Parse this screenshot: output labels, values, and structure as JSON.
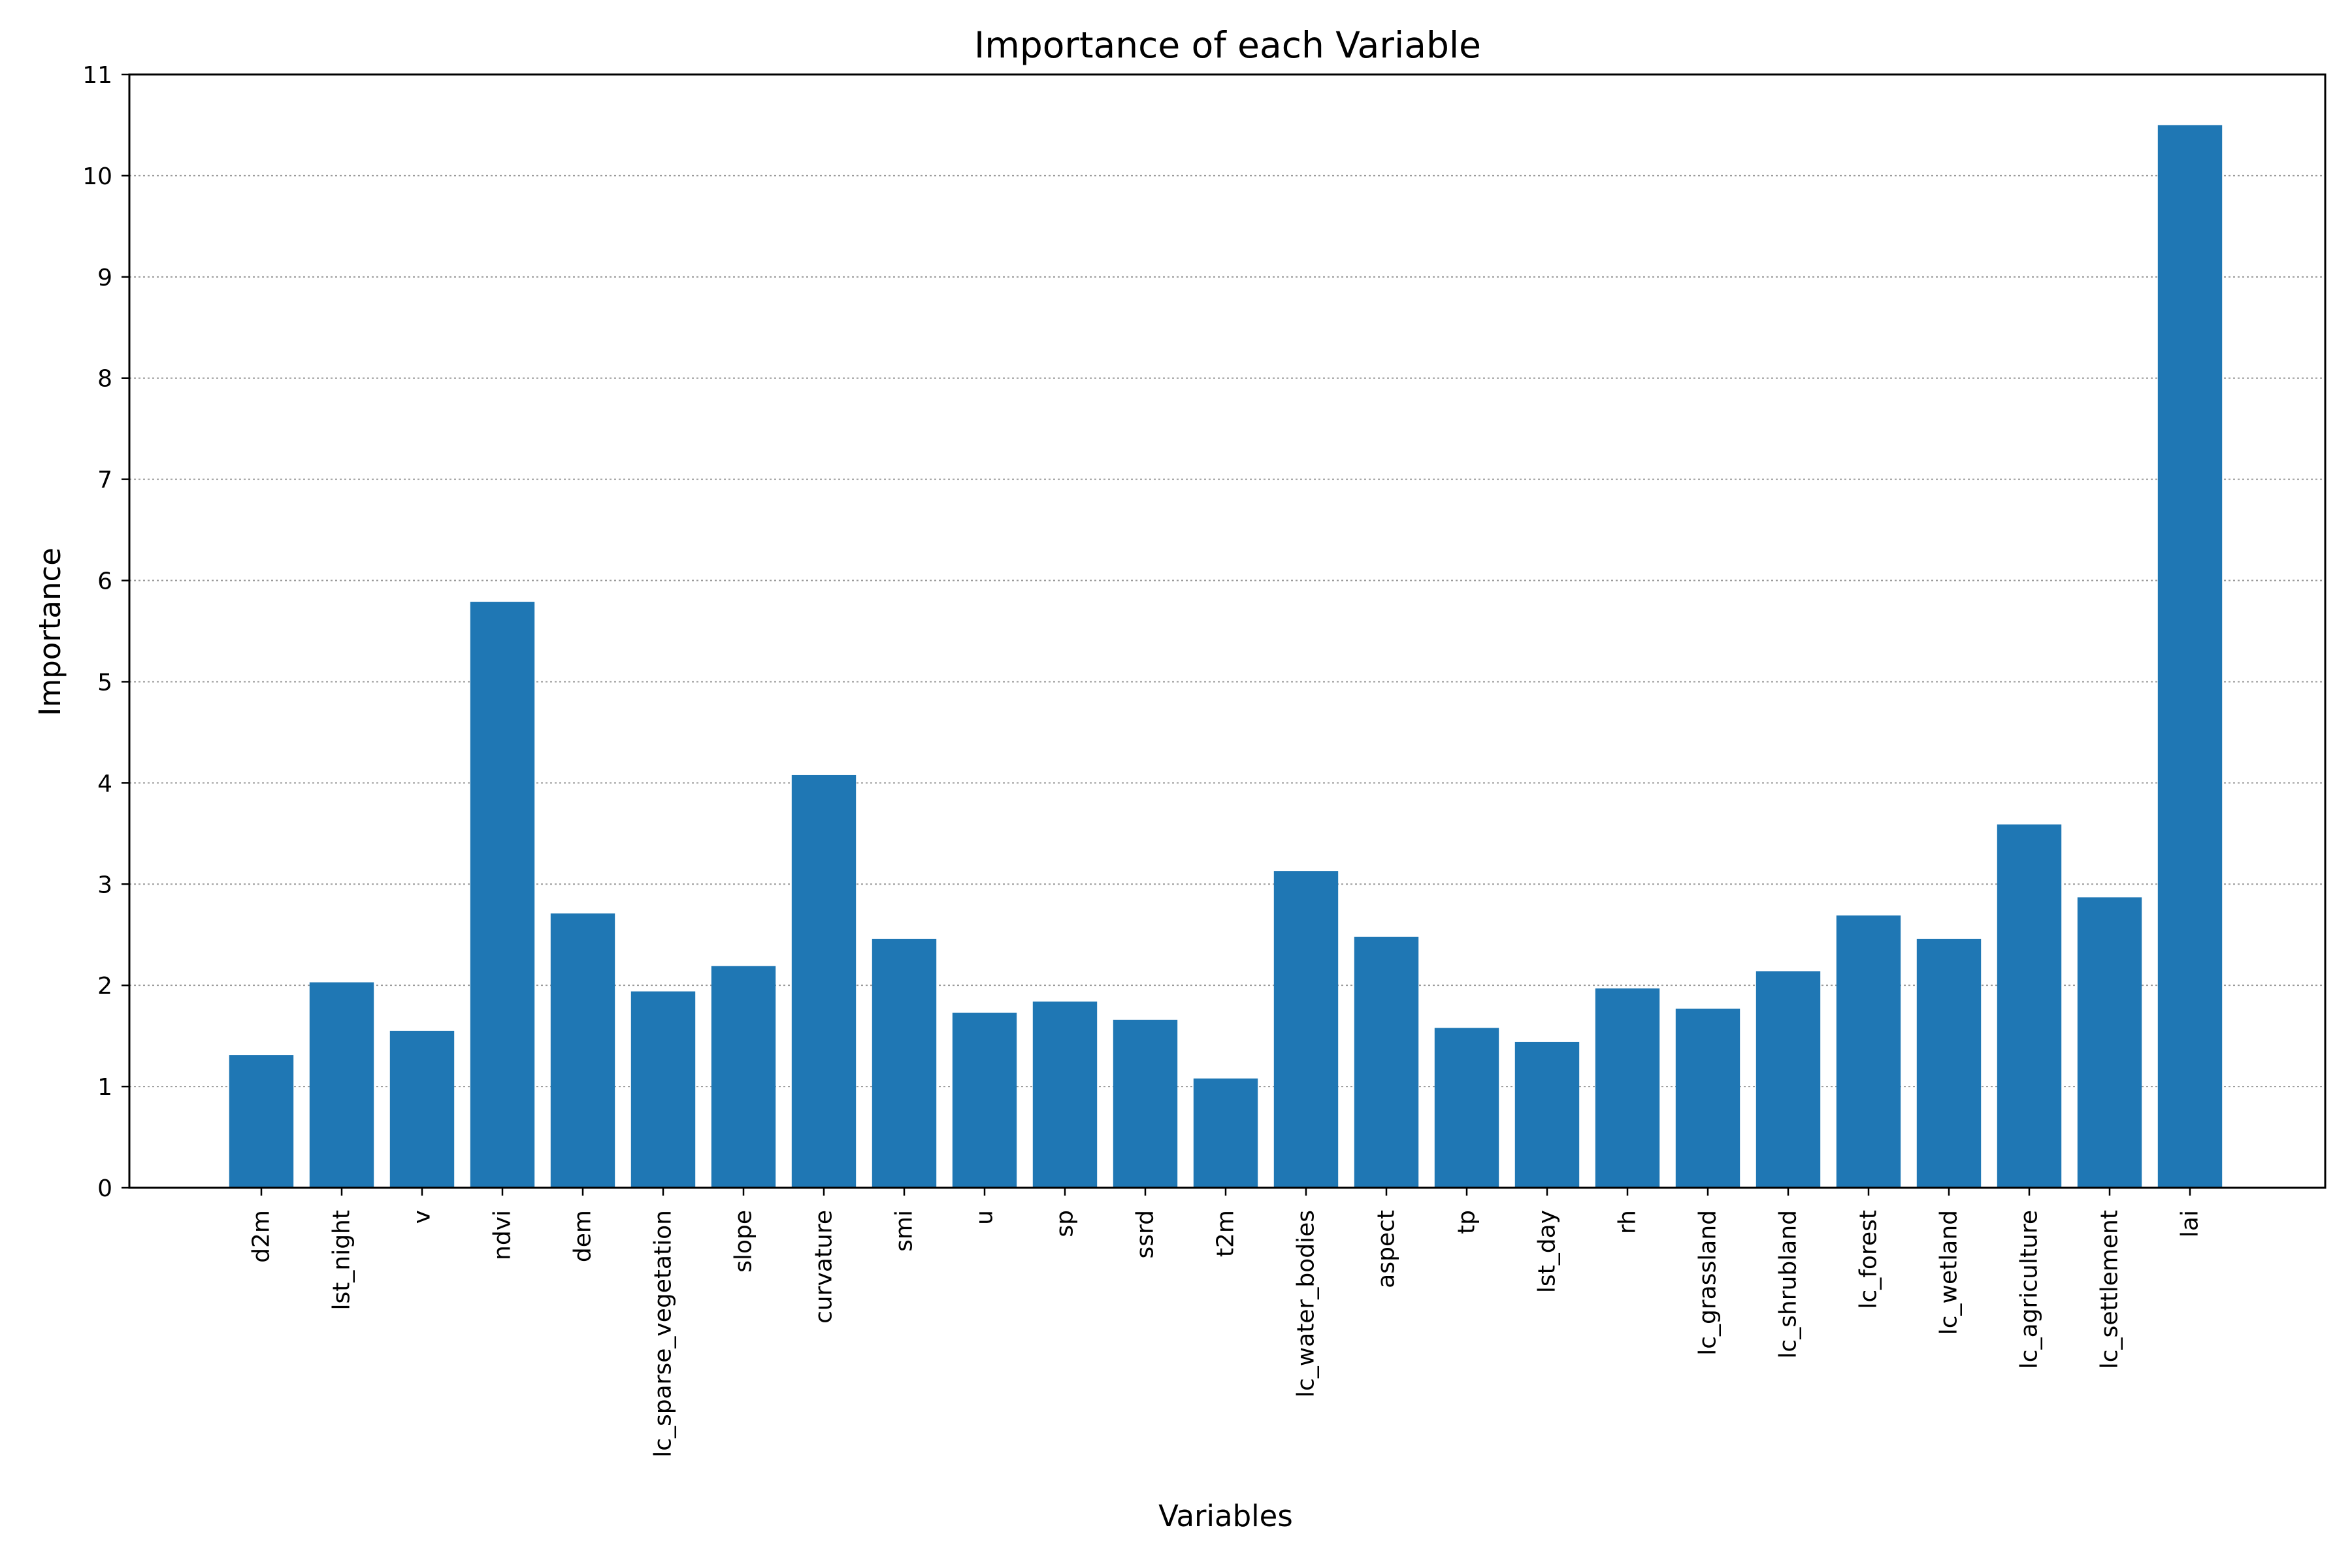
{
  "chart_data": {
    "type": "bar",
    "title": "Importance of each Variable",
    "xlabel": "Variables",
    "ylabel": "Importance",
    "ylim": [
      0,
      11
    ],
    "yticks": [
      0,
      1,
      2,
      3,
      4,
      5,
      6,
      7,
      8,
      9,
      10,
      11
    ],
    "grid": "y-dotted",
    "bar_color": "#1f77b4",
    "categories": [
      "d2m",
      "lst_night",
      "v",
      "ndvi",
      "dem",
      "lc_sparse_vegetation",
      "slope",
      "curvature",
      "smi",
      "u",
      "sp",
      "ssrd",
      "t2m",
      "lc_water_bodies",
      "aspect",
      "tp",
      "lst_day",
      "rh",
      "lc_grassland",
      "lc_shrubland",
      "lc_forest",
      "lc_wetland",
      "lc_agriculture",
      "lc_settlement",
      "lai"
    ],
    "values": [
      1.31,
      2.03,
      1.55,
      5.79,
      2.71,
      1.94,
      2.19,
      4.08,
      2.46,
      1.73,
      1.84,
      1.66,
      1.08,
      3.13,
      2.48,
      1.58,
      1.44,
      1.97,
      1.77,
      2.14,
      2.69,
      2.46,
      3.59,
      2.87,
      10.5
    ]
  }
}
